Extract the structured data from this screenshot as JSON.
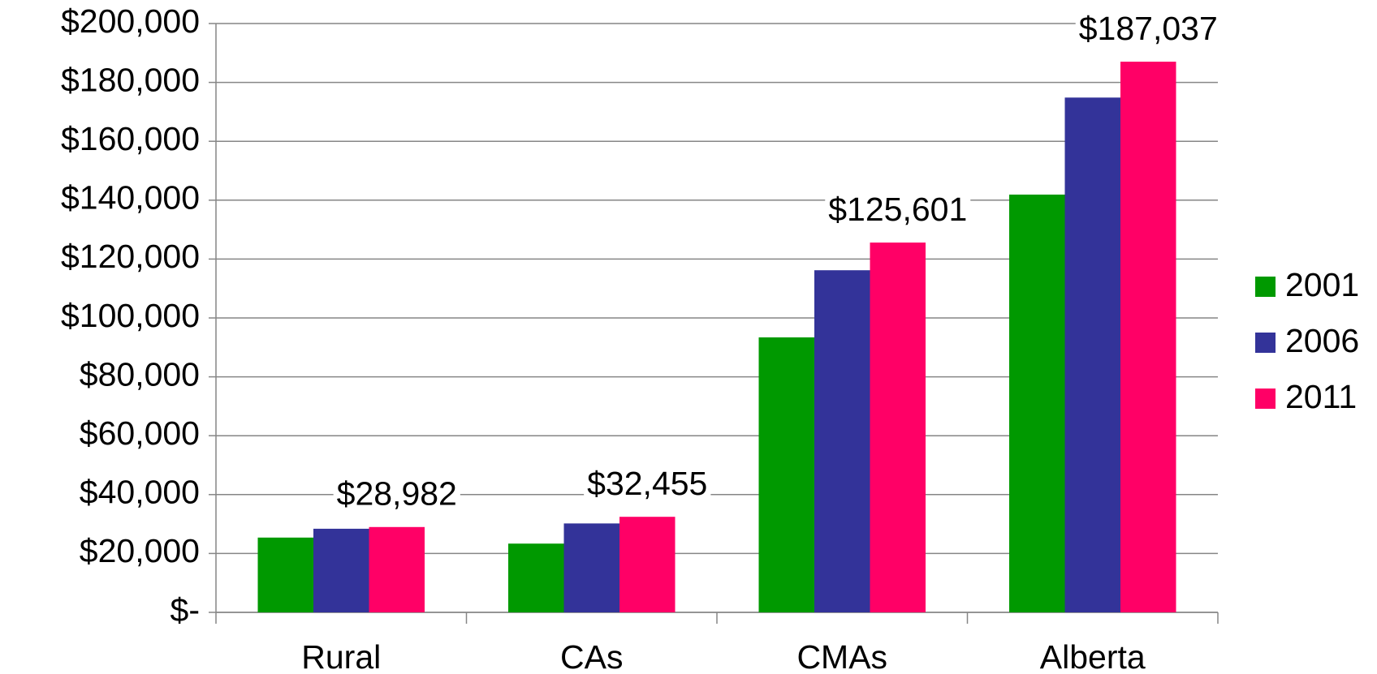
{
  "chart_data": {
    "type": "bar",
    "categories": [
      "Rural",
      "CAs",
      "CMAs",
      "Alberta"
    ],
    "series": [
      {
        "name": "2001",
        "color": "#009900",
        "values": [
          25400,
          23350,
          93400,
          141900
        ]
      },
      {
        "name": "2006",
        "color": "#333399",
        "values": [
          28400,
          30200,
          116200,
          174850
        ]
      },
      {
        "name": "2011",
        "color": "#ff0066",
        "values": [
          28982,
          32455,
          125601,
          187037
        ],
        "value_labels": [
          "$28,982",
          "$32,455",
          "$125,601",
          "$187,037"
        ]
      }
    ],
    "ylim": [
      0,
      200000
    ],
    "yticks": [
      {
        "value": 0,
        "label": "$-"
      },
      {
        "value": 20000,
        "label": "$20,000"
      },
      {
        "value": 40000,
        "label": "$40,000"
      },
      {
        "value": 60000,
        "label": "$60,000"
      },
      {
        "value": 80000,
        "label": "$80,000"
      },
      {
        "value": 100000,
        "label": "$100,000"
      },
      {
        "value": 120000,
        "label": "$120,000"
      },
      {
        "value": 140000,
        "label": "$140,000"
      },
      {
        "value": 160000,
        "label": "$160,000"
      },
      {
        "value": 180000,
        "label": "$180,000"
      },
      {
        "value": 200000,
        "label": "$200,000"
      }
    ],
    "grid": true,
    "legend": "right"
  }
}
